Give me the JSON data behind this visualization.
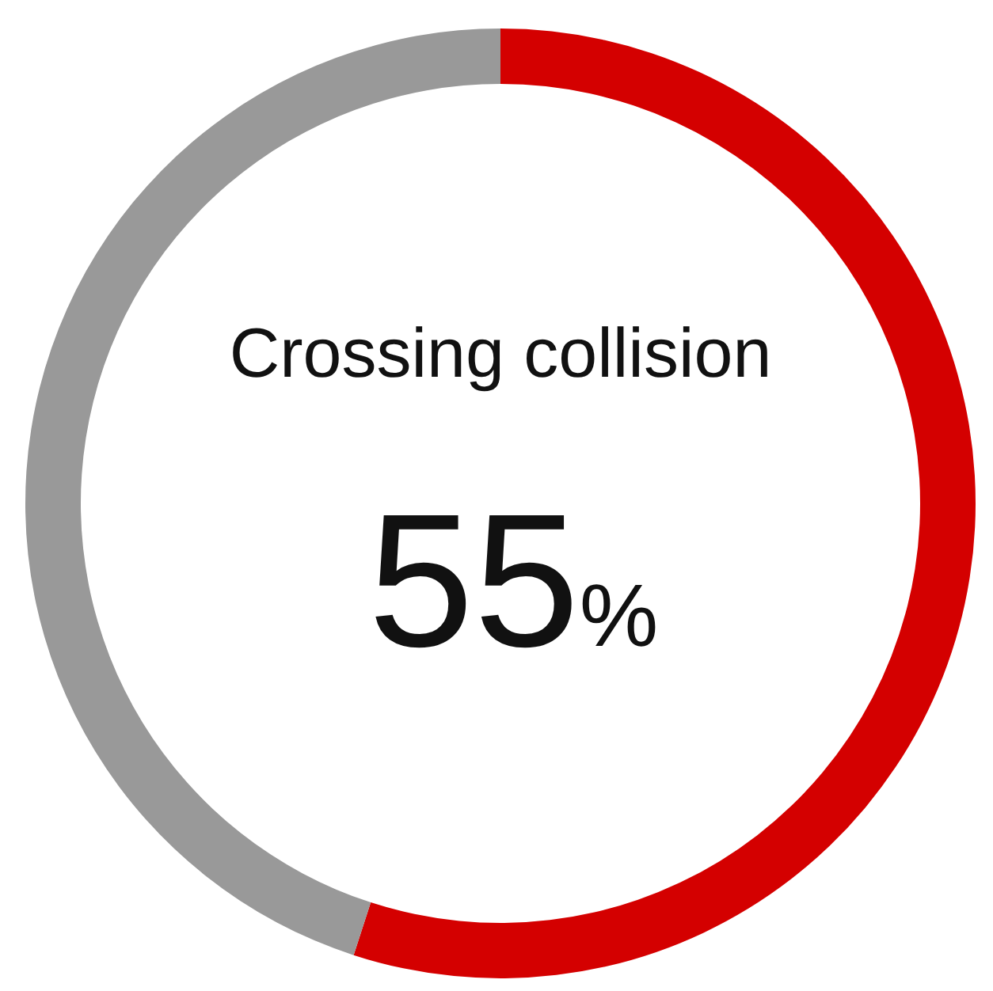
{
  "chart_data": {
    "type": "donut",
    "title": "Crossing collision",
    "categories": [
      null,
      null
    ],
    "values": [
      55,
      45
    ],
    "colors": [
      "#d40000",
      "#999999"
    ],
    "value_labels": [
      "55%",
      null
    ]
  }
}
